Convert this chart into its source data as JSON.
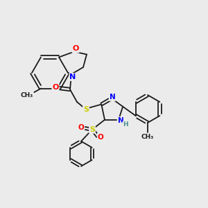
{
  "bg_color": "#ebebeb",
  "bond_color": "#1a1a1a",
  "atom_colors": {
    "O": "#ff0000",
    "N": "#0000ff",
    "S": "#cccc00",
    "H": "#4a9090",
    "C": "#1a1a1a"
  },
  "figsize": [
    3.0,
    3.0
  ],
  "dpi": 100
}
